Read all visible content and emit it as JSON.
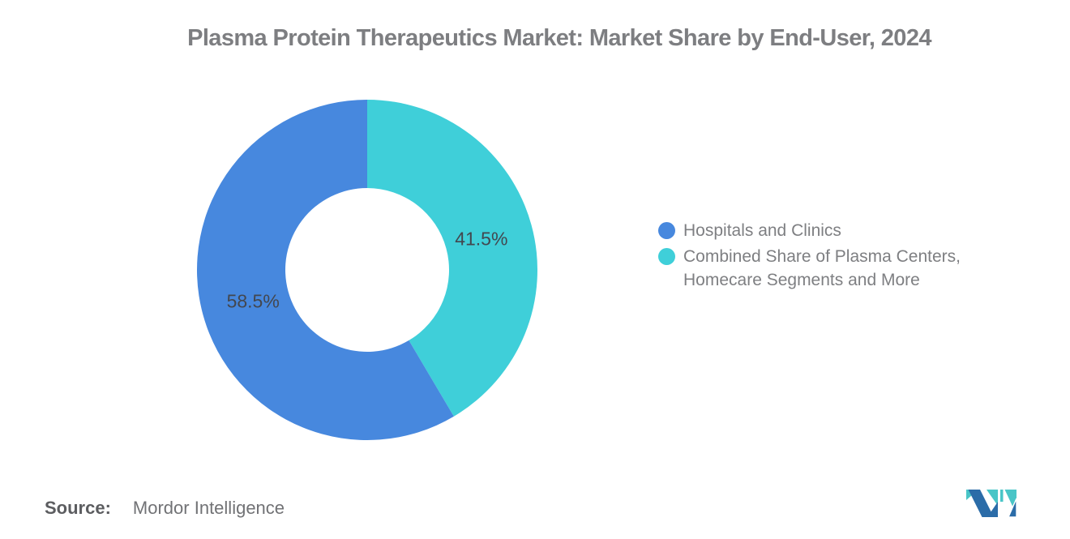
{
  "title": {
    "text": "Plasma Protein Therapeutics Market: Market Share by End-User, 2024"
  },
  "chart_data": {
    "type": "pie",
    "donut": true,
    "title": "Plasma Protein Therapeutics Market: Market Share by End-User, 2024",
    "series": [
      {
        "name": "Hospitals and Clinics",
        "value": 58.5,
        "color": "#4788DE"
      },
      {
        "name": "Combined Share of Plasma Centers, Homecare Segments and More",
        "value": 41.5,
        "color": "#3FCFD9"
      }
    ],
    "start_angle_deg": 0,
    "direction": "counterclockwise",
    "outer_radius": 210,
    "inner_radius": 101,
    "label_radius": 146,
    "label_format": "{value}%",
    "label_color": "#43474F",
    "labels": [
      "58.5%",
      "41.5%"
    ],
    "legend_position": "right",
    "grid": false,
    "background": "#ffffff"
  },
  "legend": {
    "items": [
      {
        "label": "Hospitals and Clinics",
        "color": "#4788DE"
      },
      {
        "label": "Combined Share of Plasma Centers,\nHomecare Segments and More",
        "color": "#3FCFD9"
      }
    ]
  },
  "source": {
    "label": "Source:",
    "value": "Mordor Intelligence"
  },
  "logo": {
    "name": "Mordor Intelligence",
    "navy": "#2B6CA8",
    "teal": "#49C5C7"
  }
}
